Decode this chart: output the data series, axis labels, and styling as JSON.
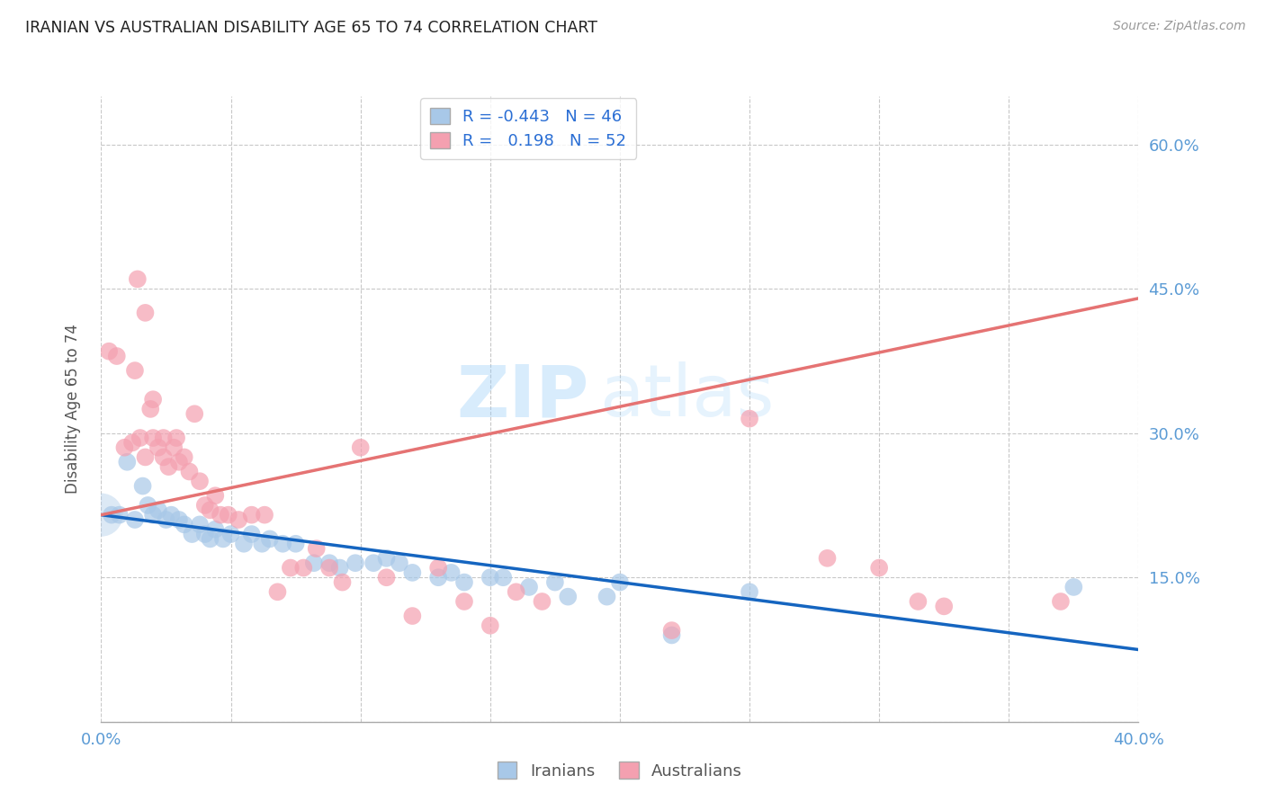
{
  "title": "IRANIAN VS AUSTRALIAN DISABILITY AGE 65 TO 74 CORRELATION CHART",
  "source": "Source: ZipAtlas.com",
  "ylabel": "Disability Age 65 to 74",
  "xlim": [
    0.0,
    0.4
  ],
  "ylim": [
    0.0,
    0.65
  ],
  "x_ticks": [
    0.0,
    0.05,
    0.1,
    0.15,
    0.2,
    0.25,
    0.3,
    0.35,
    0.4
  ],
  "y_ticks": [
    0.0,
    0.15,
    0.3,
    0.45,
    0.6
  ],
  "grid_color": "#c8c8c8",
  "background_color": "#ffffff",
  "watermark_zip": "ZIP",
  "watermark_atlas": "atlas",
  "iranians_color": "#a8c8e8",
  "australians_color": "#f4a0b0",
  "iranians_R": -0.443,
  "iranians_N": 46,
  "australians_R": 0.198,
  "australians_N": 52,
  "iranians_scatter": [
    [
      0.004,
      0.215
    ],
    [
      0.007,
      0.215
    ],
    [
      0.01,
      0.27
    ],
    [
      0.013,
      0.21
    ],
    [
      0.016,
      0.245
    ],
    [
      0.018,
      0.225
    ],
    [
      0.02,
      0.215
    ],
    [
      0.022,
      0.22
    ],
    [
      0.025,
      0.21
    ],
    [
      0.027,
      0.215
    ],
    [
      0.03,
      0.21
    ],
    [
      0.032,
      0.205
    ],
    [
      0.035,
      0.195
    ],
    [
      0.038,
      0.205
    ],
    [
      0.04,
      0.195
    ],
    [
      0.042,
      0.19
    ],
    [
      0.044,
      0.2
    ],
    [
      0.047,
      0.19
    ],
    [
      0.05,
      0.195
    ],
    [
      0.055,
      0.185
    ],
    [
      0.058,
      0.195
    ],
    [
      0.062,
      0.185
    ],
    [
      0.065,
      0.19
    ],
    [
      0.07,
      0.185
    ],
    [
      0.075,
      0.185
    ],
    [
      0.082,
      0.165
    ],
    [
      0.088,
      0.165
    ],
    [
      0.092,
      0.16
    ],
    [
      0.098,
      0.165
    ],
    [
      0.105,
      0.165
    ],
    [
      0.11,
      0.17
    ],
    [
      0.115,
      0.165
    ],
    [
      0.12,
      0.155
    ],
    [
      0.13,
      0.15
    ],
    [
      0.135,
      0.155
    ],
    [
      0.14,
      0.145
    ],
    [
      0.15,
      0.15
    ],
    [
      0.155,
      0.15
    ],
    [
      0.165,
      0.14
    ],
    [
      0.175,
      0.145
    ],
    [
      0.18,
      0.13
    ],
    [
      0.195,
      0.13
    ],
    [
      0.2,
      0.145
    ],
    [
      0.22,
      0.09
    ],
    [
      0.25,
      0.135
    ],
    [
      0.375,
      0.14
    ]
  ],
  "australians_scatter": [
    [
      0.003,
      0.385
    ],
    [
      0.006,
      0.38
    ],
    [
      0.009,
      0.285
    ],
    [
      0.012,
      0.29
    ],
    [
      0.013,
      0.365
    ],
    [
      0.015,
      0.295
    ],
    [
      0.017,
      0.275
    ],
    [
      0.019,
      0.325
    ],
    [
      0.02,
      0.295
    ],
    [
      0.022,
      0.285
    ],
    [
      0.024,
      0.275
    ],
    [
      0.026,
      0.265
    ],
    [
      0.028,
      0.285
    ],
    [
      0.03,
      0.27
    ],
    [
      0.032,
      0.275
    ],
    [
      0.034,
      0.26
    ],
    [
      0.036,
      0.32
    ],
    [
      0.038,
      0.25
    ],
    [
      0.04,
      0.225
    ],
    [
      0.042,
      0.22
    ],
    [
      0.044,
      0.235
    ],
    [
      0.046,
      0.215
    ],
    [
      0.049,
      0.215
    ],
    [
      0.053,
      0.21
    ],
    [
      0.058,
      0.215
    ],
    [
      0.063,
      0.215
    ],
    [
      0.068,
      0.135
    ],
    [
      0.073,
      0.16
    ],
    [
      0.078,
      0.16
    ],
    [
      0.083,
      0.18
    ],
    [
      0.088,
      0.16
    ],
    [
      0.093,
      0.145
    ],
    [
      0.1,
      0.285
    ],
    [
      0.11,
      0.15
    ],
    [
      0.12,
      0.11
    ],
    [
      0.13,
      0.16
    ],
    [
      0.14,
      0.125
    ],
    [
      0.15,
      0.1
    ],
    [
      0.16,
      0.135
    ],
    [
      0.17,
      0.125
    ],
    [
      0.014,
      0.46
    ],
    [
      0.017,
      0.425
    ],
    [
      0.02,
      0.335
    ],
    [
      0.024,
      0.295
    ],
    [
      0.029,
      0.295
    ],
    [
      0.22,
      0.095
    ],
    [
      0.25,
      0.315
    ],
    [
      0.28,
      0.17
    ],
    [
      0.3,
      0.16
    ],
    [
      0.315,
      0.125
    ],
    [
      0.325,
      0.12
    ],
    [
      0.37,
      0.125
    ]
  ],
  "iranians_line": [
    [
      0.0,
      0.215
    ],
    [
      0.4,
      0.075
    ]
  ],
  "australians_line": [
    [
      0.0,
      0.215
    ],
    [
      0.4,
      0.44
    ]
  ],
  "legend_iranians": "R = -0.443   N = 46",
  "legend_australians": "R =   0.198   N = 52"
}
